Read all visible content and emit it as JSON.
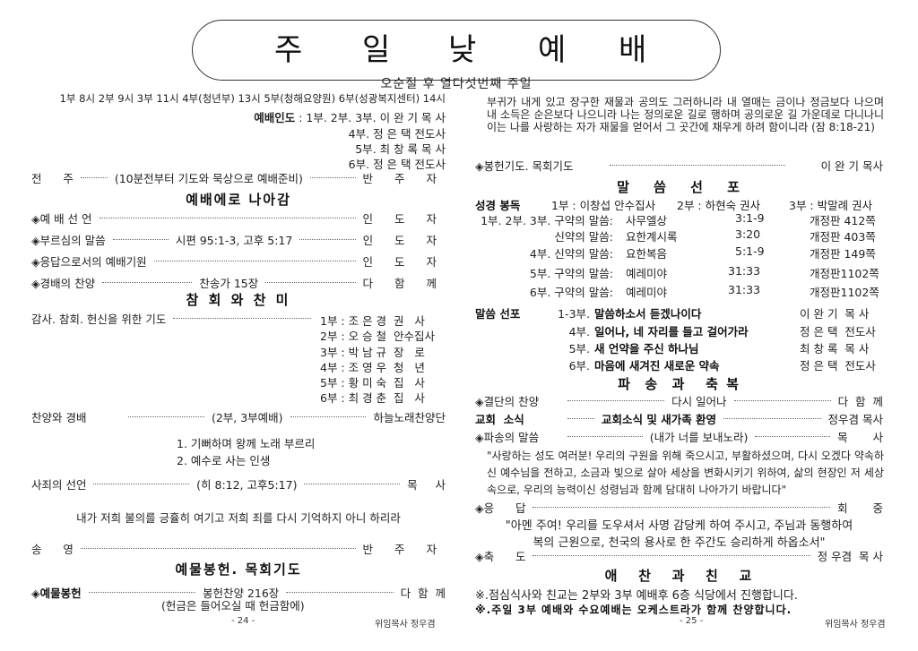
{
  "header": {
    "title_chars": [
      "주",
      "일",
      "낮",
      "예",
      "배"
    ],
    "subtitle": "오순절 후 열다섯번째 주일"
  },
  "left": {
    "schedule": "1부 8시  2부 9시  3부 11시  4부(청년부) 13시  5부(청해요양원) 6부(성광복지센터) 14시",
    "leaders_label": "예배인도",
    "leaders": [
      ": 1부. 2부. 3부. 이 완 기 목 사",
      "4부. 정 은 택 전도사",
      "5부. 최 창 록 목  사",
      "6부. 정 은 택 전도사"
    ],
    "prelude": {
      "label": "전      주",
      "middle": "(10분전부터 기도와 묵상으로 예배준비)",
      "right": "반 주 자"
    },
    "h1": "예배에로 나아감",
    "items1": [
      {
        "label": "◈예 배 선 언",
        "middle": "",
        "right": "인 도 자"
      },
      {
        "label": "◈부르심의 말씀",
        "middle": "시편 95:1-3, 고후 5:17",
        "right": "인 도 자"
      },
      {
        "label": "◈응답으로서의 예배기원",
        "middle": "",
        "right": "인 도 자"
      },
      {
        "label": "◈경배의 찬양",
        "middle": "찬송가 15장",
        "right": "다 함 께"
      }
    ],
    "h2": "참 회 와  찬 미",
    "prayer_label": "감사. 참회. 헌신을 위한 기도",
    "prayer_leaders": [
      "1부 : 조 은 경  권   사",
      "2부 : 오 승 철  안수집사",
      "3부 : 박 남 규  장   로",
      "4부 : 조 영 우  청   년",
      "5부 : 황 미 숙  집   사",
      "6부 : 최 경 춘  집   사"
    ],
    "praise": {
      "label": "찬양와 경배",
      "middle": "(2부, 3부예배)",
      "right": "하늘노래찬양단"
    },
    "songs": [
      "1.  기뻐하며 왕께 노래 부르리",
      "2.  예수로 사는 인생"
    ],
    "absolution": {
      "label": "사죄의 선언",
      "middle": "(히 8:12, 고후5:17)",
      "right": "목     사"
    },
    "absolution_text": "내가 저희 불의를 긍휼히 여기고 저희 죄를 다시 기억하지 아니 하리라",
    "doxology": {
      "label": "송      영",
      "right": "반 주 자"
    },
    "h3": "예물봉헌. 목회기도",
    "offering": {
      "label": "◈예물봉헌",
      "middle": "봉헌찬양 216장",
      "note": "(헌금은 들어오실 때 헌금함에)",
      "right": "다  함  께"
    },
    "page": "- 24 -",
    "footer": "위임목사 정우겸"
  },
  "right": {
    "scripture": "부귀가 내게 있고 장구한 재물과 공의도 그러하니라 내 열매는 금이나 정금보다 나으며 내 소득은 순은보다 나으니라 나는 정의로운 길로 행하며 공의로운 길 가운데로 다니나니 이는 나를 사랑하는 자가 재물을 얻어서 그 곳간에 채우게 하려 함이니라 (잠 8:18-21)",
    "prayer": {
      "label": "◈봉헌기도. 목회기도",
      "right": "이 완 기 목사"
    },
    "h1": "말   씀   선   포",
    "reading_label": "성경 봉독",
    "readers": [
      "1부 : 이창섭 안수집사",
      "2부 : 하현숙 권사",
      "3부 : 박말례 권사"
    ],
    "readings": [
      {
        "label": "1부. 2부. 3부. 구약의 말씀:",
        "book": "사무엘상",
        "verse": "3:1-9",
        "page": "개정판 412쪽"
      },
      {
        "label": "신약의 말씀:",
        "book": "요한계시록",
        "verse": "3:20",
        "page": "개정판 403쪽"
      },
      {
        "label": "4부. 신약의 말씀:",
        "book": "요한복음",
        "verse": "5:1-9",
        "page": "개정판 149쪽"
      },
      {
        "label": "5부. 구약의 말씀:",
        "book": "예레미야",
        "verse": "31:33",
        "page": "개정판1102쪽"
      },
      {
        "label": "6부. 구약의 말씀:",
        "book": "예레미야",
        "verse": "31:33",
        "page": "개정판1102쪽"
      }
    ],
    "sermon_label": "말씀 선포",
    "sermons": [
      {
        "part": "1-3부.",
        "title": "말씀하소서 듣겠나이다",
        "preacher": "이 완 기  목 사"
      },
      {
        "part": "4부.",
        "title": "일어나, 네 자리를 들고 걸어가라",
        "preacher": "정 은 택  전도사"
      },
      {
        "part": "5부.",
        "title": "새 언약을 주신 하나님",
        "preacher": "최 창 록  목 사"
      },
      {
        "part": "6부.",
        "title": "마음에 새겨진 새로운 약속",
        "preacher": "정 은 택  전도사"
      }
    ],
    "h2": "파  송  과   축 복",
    "decision": {
      "label": "◈결단의 찬양",
      "middle": "다시 일어나",
      "right": "다  함  께"
    },
    "news": {
      "label": "교회  소식",
      "middle": "교회소식 및 새가족 환영",
      "right": "정우겸 목사"
    },
    "sending": {
      "label": "◈파송의 말씀",
      "middle": "(내가 너를 보내노라)",
      "right": "목       사"
    },
    "sending_text": "\"사랑하는 성도 여러분! 우리의 구원을 위해 죽으시고, 부활하셨으며, 다시 오겠다 약속하신 예수님을 전하고, 소금과 빛으로 살아 세상을 변화시키기 위하여, 삶의 현장인 저 세상 속으로, 우리의 능력이신 성령님과 함께 담대히 나아가기 바랍니다\"",
    "response": {
      "label": "◈응      답",
      "right": "회       중"
    },
    "response_text": [
      "\"아멘 주여! 우리를 도우셔서 사명 감당케 하여 주시고, 주님과 동행하여",
      "복의 근원으로, 천국의 용사로 한 주간도 승리하게 하옵소서\""
    ],
    "benediction": {
      "label": "◈축      도",
      "right": "정 우겸  목 사"
    },
    "h3": "애   찬   과   친   교",
    "notices": [
      "※.점심식사와 친교는 2부와 3부 예배후 6층 식당에서 진행합니다.",
      "※.주일 3부 예배와 수요예배는 오케스트라가 함께 찬양합니다."
    ],
    "page": "- 25 -",
    "footer": "위임목사 정우겸"
  }
}
